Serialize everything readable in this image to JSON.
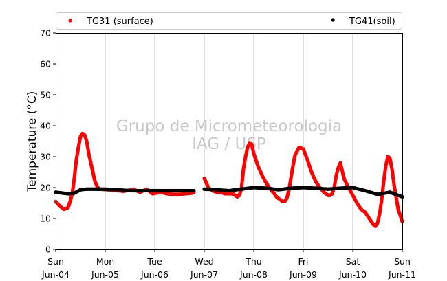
{
  "chart_data": {
    "type": "scatter",
    "title": "",
    "xlabel": "",
    "ylabel": "Temperature (°C)",
    "ylim": [
      0,
      70
    ],
    "yticks": [
      0,
      10,
      20,
      30,
      40,
      50,
      60,
      70
    ],
    "xlim": [
      "2017-06-04T00:00",
      "2017-06-11T00:00"
    ],
    "xticks": [
      {
        "day": "Sun",
        "date": "Jun-04"
      },
      {
        "day": "Mon",
        "date": "Jun-05"
      },
      {
        "day": "Tue",
        "date": "Jun-06"
      },
      {
        "day": "Wed",
        "date": "Jun-07"
      },
      {
        "day": "Thu",
        "date": "Jun-08"
      },
      {
        "day": "Fri",
        "date": "Jun-09"
      },
      {
        "day": "Sat",
        "date": "Jun-10"
      },
      {
        "day": "Sun",
        "date": "Jun-11"
      }
    ],
    "grid": "vertical",
    "legend_position": "top",
    "watermark": [
      "Grupo de Micrometeorologia",
      "IAG / USP"
    ],
    "series": [
      {
        "name": "TG31 (surface)",
        "color": "#ff0000",
        "marker": "dot",
        "segments": [
          {
            "x": [
              "2017-06-04T00:00",
              "2017-06-04T02:00",
              "2017-06-04T04:00",
              "2017-06-04T06:00",
              "2017-06-04T07:00",
              "2017-06-04T08:00",
              "2017-06-04T09:00",
              "2017-06-04T10:00",
              "2017-06-04T11:00",
              "2017-06-04T12:00",
              "2017-06-04T13:00",
              "2017-06-04T14:00",
              "2017-06-04T15:00",
              "2017-06-04T16:00",
              "2017-06-04T17:00",
              "2017-06-04T18:00",
              "2017-06-04T19:00",
              "2017-06-04T20:00",
              "2017-06-04T21:00"
            ],
            "y": [
              15.5,
              14.0,
              13.0,
              13.5,
              15.5,
              18.0,
              23.0,
              29.0,
              33.0,
              36.5,
              37.5,
              37.0,
              35.0,
              31.0,
              28.0,
              25.0,
              22.0,
              20.5,
              19.5
            ]
          },
          {
            "x": [
              "2017-06-04T21:00",
              "2017-06-05T03:00",
              "2017-06-05T09:00",
              "2017-06-05T14:00",
              "2017-06-05T15:00",
              "2017-06-05T17:00",
              "2017-06-05T20:00",
              "2017-06-05T23:00",
              "2017-06-06T03:00",
              "2017-06-06T06:00",
              "2017-06-06T09:00",
              "2017-06-06T12:00",
              "2017-06-06T15:00",
              "2017-06-06T18:00",
              "2017-06-06T19:00"
            ],
            "y": [
              19.5,
              19.2,
              18.8,
              19.5,
              19.0,
              18.5,
              19.5,
              18.0,
              18.5,
              18.0,
              17.8,
              17.8,
              18.0,
              18.2,
              18.5
            ]
          },
          {
            "x": [
              "2017-06-07T00:00",
              "2017-06-07T01:00",
              "2017-06-07T02:00",
              "2017-06-07T04:00",
              "2017-06-07T06:00",
              "2017-06-07T08:00",
              "2017-06-07T10:00",
              "2017-06-07T12:00",
              "2017-06-07T14:00",
              "2017-06-07T15:00",
              "2017-06-07T16:00",
              "2017-06-07T17:00",
              "2017-06-07T18:00",
              "2017-06-07T19:00",
              "2017-06-07T20:00",
              "2017-06-07T21:00",
              "2017-06-07T22:00",
              "2017-06-07T23:00",
              "2017-06-08T00:00",
              "2017-06-08T02:00",
              "2017-06-08T04:00",
              "2017-06-08T06:00",
              "2017-06-08T08:00",
              "2017-06-08T10:00",
              "2017-06-08T11:00",
              "2017-06-08T12:00",
              "2017-06-08T13:00",
              "2017-06-08T14:00",
              "2017-06-08T15:00",
              "2017-06-08T16:00",
              "2017-06-08T17:00",
              "2017-06-08T18:00",
              "2017-06-08T19:00",
              "2017-06-08T20:00",
              "2017-06-08T22:00",
              "2017-06-09T00:00",
              "2017-06-09T02:00",
              "2017-06-09T04:00",
              "2017-06-09T06:00",
              "2017-06-09T08:00",
              "2017-06-09T10:00",
              "2017-06-09T11:00",
              "2017-06-09T12:00",
              "2017-06-09T13:00",
              "2017-06-09T14:00",
              "2017-06-09T15:00",
              "2017-06-09T16:00",
              "2017-06-09T17:00",
              "2017-06-09T18:00",
              "2017-06-09T19:00",
              "2017-06-09T20:00",
              "2017-06-09T22:00",
              "2017-06-10T00:00",
              "2017-06-10T02:00",
              "2017-06-10T04:00",
              "2017-06-10T06:00",
              "2017-06-10T07:00",
              "2017-06-10T08:00",
              "2017-06-10T09:00",
              "2017-06-10T10:00",
              "2017-06-10T11:00",
              "2017-06-10T12:00",
              "2017-06-10T13:00",
              "2017-06-10T14:00",
              "2017-06-10T15:00",
              "2017-06-10T16:00",
              "2017-06-10T17:00",
              "2017-06-10T18:00",
              "2017-06-10T19:00",
              "2017-06-10T20:00",
              "2017-06-10T21:00",
              "2017-06-10T22:00",
              "2017-06-11T00:00"
            ],
            "y": [
              23.0,
              21.5,
              20.0,
              19.0,
              18.5,
              18.5,
              18.0,
              18.0,
              18.0,
              17.5,
              17.0,
              17.5,
              19.5,
              26.0,
              30.0,
              33.0,
              34.5,
              34.0,
              31.0,
              27.0,
              24.0,
              21.5,
              19.5,
              18.0,
              17.0,
              16.5,
              16.0,
              15.5,
              15.5,
              16.5,
              19.0,
              23.0,
              27.0,
              30.5,
              33.0,
              32.5,
              29.0,
              25.0,
              22.0,
              20.0,
              18.5,
              18.0,
              17.5,
              17.5,
              18.0,
              20.0,
              24.0,
              26.5,
              28.0,
              25.0,
              22.5,
              20.0,
              17.5,
              15.0,
              13.0,
              12.0,
              11.0,
              10.0,
              9.0,
              8.0,
              7.5,
              8.5,
              11.5,
              16.0,
              22.0,
              27.0,
              30.0,
              29.5,
              26.0,
              21.0,
              17.0,
              13.0,
              9.0
            ]
          }
        ]
      },
      {
        "name": "TG41(soil)",
        "color": "#000000",
        "marker": "dot",
        "segments": [
          {
            "x": [
              "2017-06-04T00:00",
              "2017-06-04T06:00",
              "2017-06-04T09:00",
              "2017-06-04T12:00",
              "2017-06-04T15:00",
              "2017-06-04T18:00",
              "2017-06-05T00:00",
              "2017-06-05T06:00",
              "2017-06-05T12:00",
              "2017-06-05T18:00",
              "2017-06-06T00:00",
              "2017-06-06T06:00",
              "2017-06-06T12:00",
              "2017-06-06T18:00",
              "2017-06-06T19:00"
            ],
            "y": [
              18.5,
              18.0,
              18.2,
              19.3,
              19.5,
              19.5,
              19.5,
              19.3,
              19.0,
              19.0,
              19.0,
              19.0,
              19.0,
              19.0,
              19.0
            ]
          },
          {
            "x": [
              "2017-06-07T00:00",
              "2017-06-07T06:00",
              "2017-06-07T12:00",
              "2017-06-07T18:00",
              "2017-06-08T00:00",
              "2017-06-08T06:00",
              "2017-06-08T12:00",
              "2017-06-08T18:00",
              "2017-06-09T00:00",
              "2017-06-09T06:00",
              "2017-06-09T12:00",
              "2017-06-09T18:00",
              "2017-06-10T00:00",
              "2017-06-10T06:00",
              "2017-06-10T12:00",
              "2017-06-10T18:00",
              "2017-06-11T00:00"
            ],
            "y": [
              19.5,
              19.3,
              19.0,
              19.5,
              20.0,
              19.8,
              19.3,
              19.8,
              20.0,
              19.8,
              19.5,
              19.8,
              20.0,
              19.0,
              17.8,
              18.5,
              17.0
            ]
          }
        ]
      }
    ]
  }
}
